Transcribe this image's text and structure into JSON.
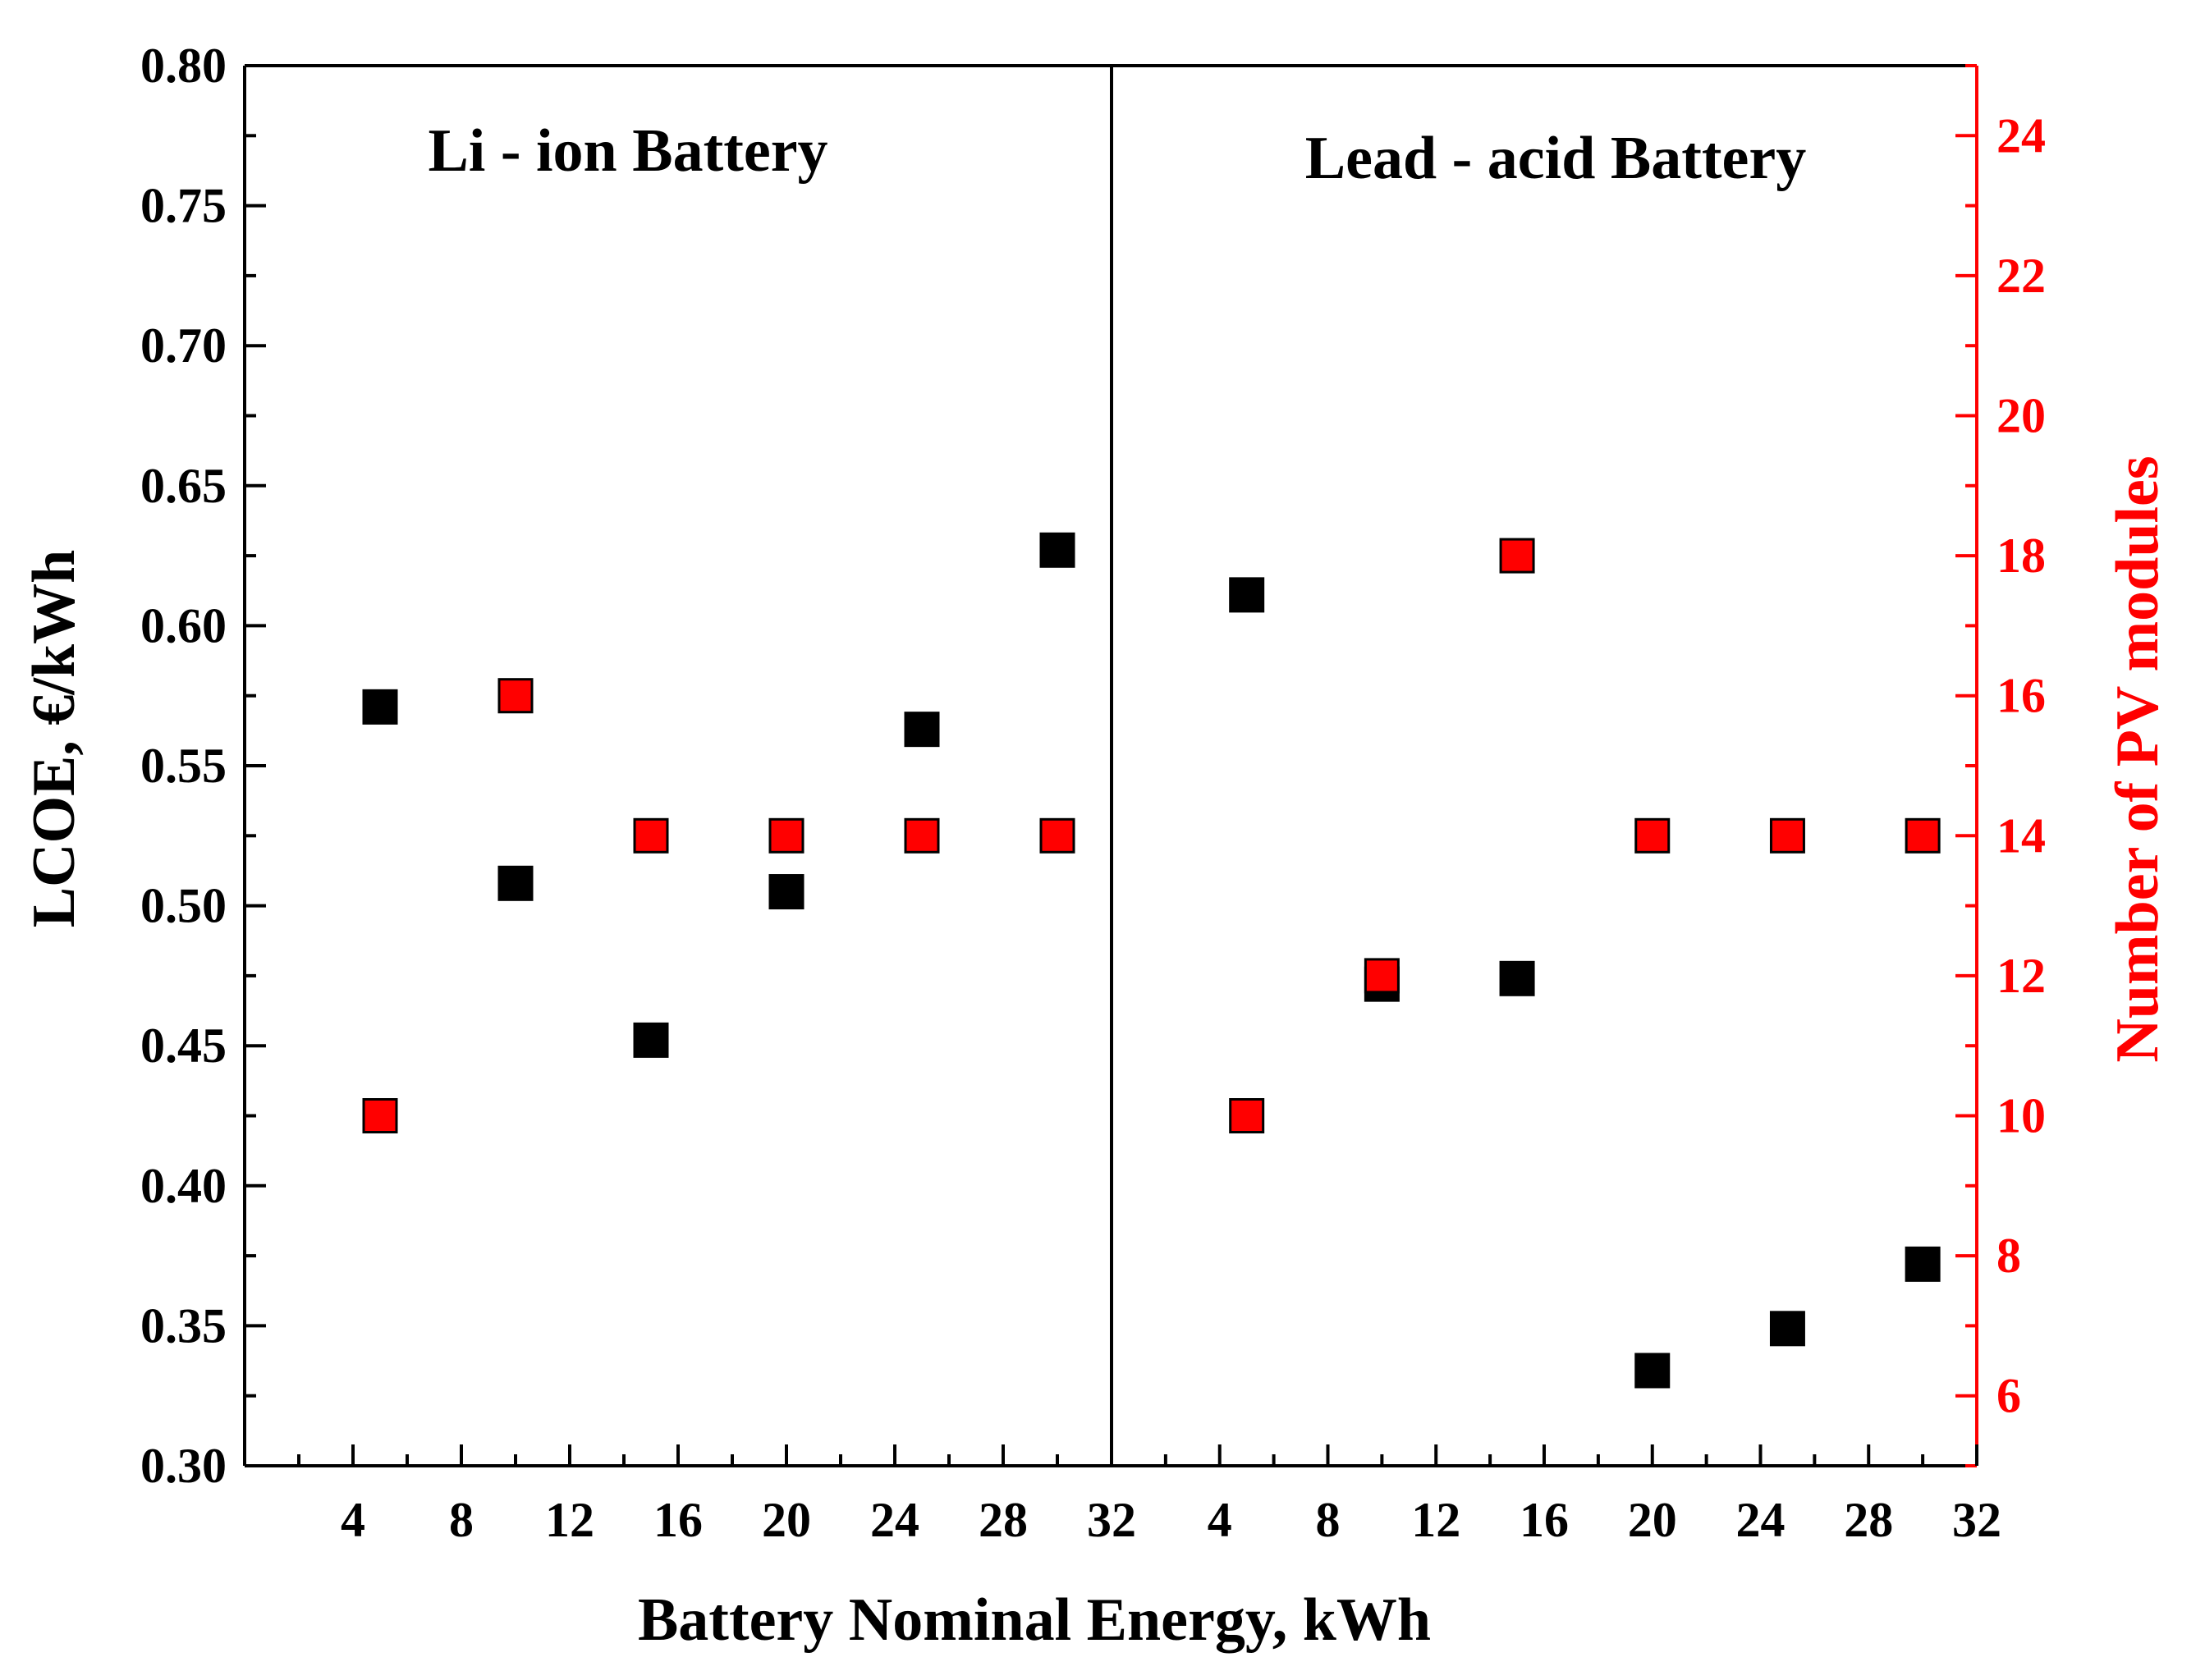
{
  "chart_data": {
    "type": "scatter",
    "xlabel": "Battery Nominal Energy, kWh",
    "ylabel_left": "LCOE, €/kWh",
    "ylabel_right": "Number of PV modules",
    "ylim_left": [
      0.3,
      0.8
    ],
    "ylim_right": [
      5,
      25
    ],
    "yticks_left": [
      "0.30",
      "0.35",
      "0.40",
      "0.45",
      "0.50",
      "0.55",
      "0.60",
      "0.65",
      "0.70",
      "0.75",
      "0.80"
    ],
    "yticks_right": [
      "6",
      "8",
      "10",
      "12",
      "14",
      "16",
      "18",
      "20",
      "22",
      "24"
    ],
    "xlim": [
      0,
      32
    ],
    "xticks": [
      "4",
      "8",
      "12",
      "16",
      "20",
      "24",
      "28",
      "32"
    ],
    "colors": {
      "lcoe": "#000000",
      "pv": "#ff0000",
      "right_axis": "#ff0000"
    },
    "panels": [
      {
        "title": "Li - ion Battery",
        "series": [
          {
            "name": "LCOE",
            "axis": "left",
            "x": [
              5,
              10,
              15,
              20,
              25,
              30
            ],
            "values": [
              0.571,
              0.508,
              0.452,
              0.505,
              0.563,
              0.627
            ]
          },
          {
            "name": "Number of PV modules",
            "axis": "right",
            "x": [
              5,
              10,
              15,
              20,
              25,
              30
            ],
            "values": [
              10,
              16,
              14,
              14,
              14,
              14
            ]
          }
        ]
      },
      {
        "title": "Lead - acid Battery",
        "series": [
          {
            "name": "LCOE",
            "axis": "left",
            "x": [
              5,
              10,
              15,
              20,
              25,
              30
            ],
            "values": [
              0.611,
              0.472,
              0.474,
              0.334,
              0.349,
              0.372
            ]
          },
          {
            "name": "Number of PV modules",
            "axis": "right",
            "x": [
              5,
              10,
              15,
              20,
              25,
              30
            ],
            "values": [
              10,
              12,
              18,
              14,
              14,
              14
            ]
          }
        ]
      }
    ]
  }
}
